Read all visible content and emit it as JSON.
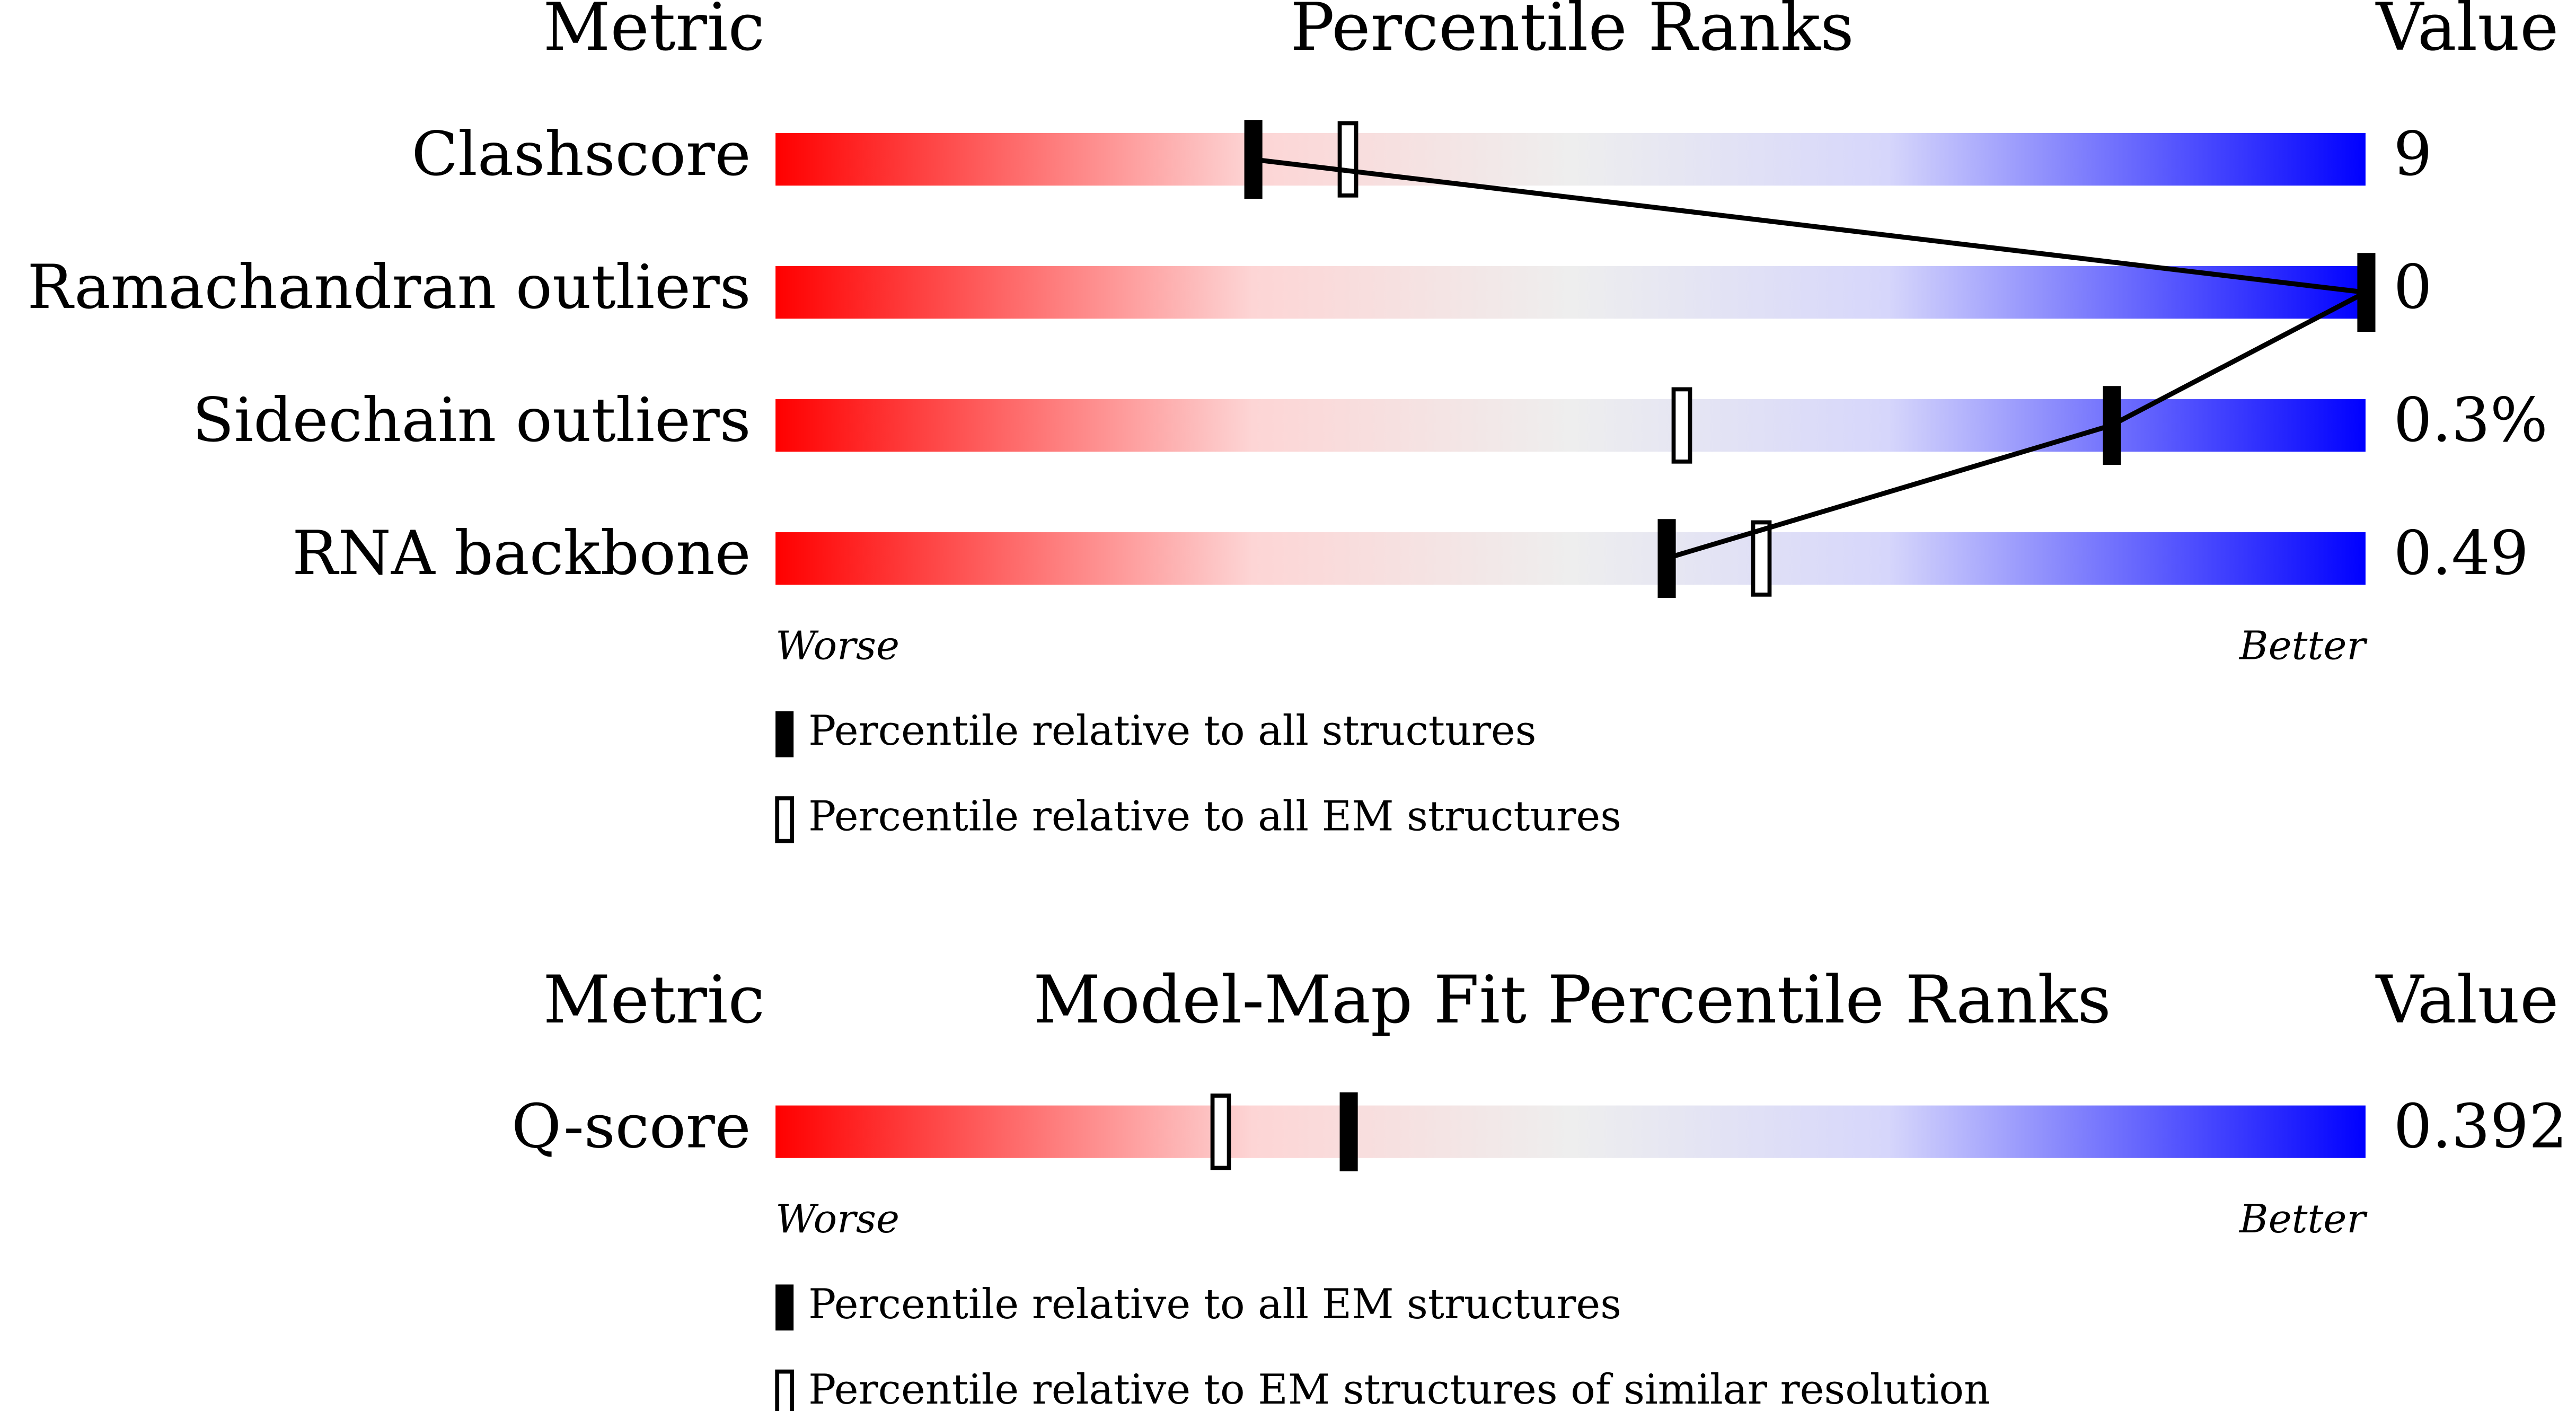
{
  "panels": [
    {
      "headers": {
        "metric": "Metric",
        "title": "Percentile Ranks",
        "value": "Value"
      },
      "rows": [
        {
          "metric": "Clashscore",
          "value": "9",
          "filled": 30,
          "hollow": 36
        },
        {
          "metric": "Ramachandran outliers",
          "value": "0",
          "filled": 100,
          "hollow": 100
        },
        {
          "metric": "Sidechain outliers",
          "value": "0.3%",
          "filled": 84,
          "hollow": 57
        },
        {
          "metric": "RNA backbone",
          "value": "0.49",
          "filled": 56,
          "hollow": 62
        }
      ],
      "worse": "Worse",
      "better": "Better",
      "legend_filled": "Percentile relative to all structures",
      "legend_hollow": "Percentile relative to all EM structures"
    },
    {
      "headers": {
        "metric": "Metric",
        "title": "Model-Map Fit Percentile Ranks",
        "value": "Value"
      },
      "rows": [
        {
          "metric": "Q-score",
          "value": "0.392",
          "filled": 36,
          "hollow": 28
        }
      ],
      "worse": "Worse",
      "better": "Better",
      "legend_filled": "Percentile relative to all EM structures",
      "legend_hollow": "Percentile relative to EM structures of similar resolution"
    }
  ]
}
